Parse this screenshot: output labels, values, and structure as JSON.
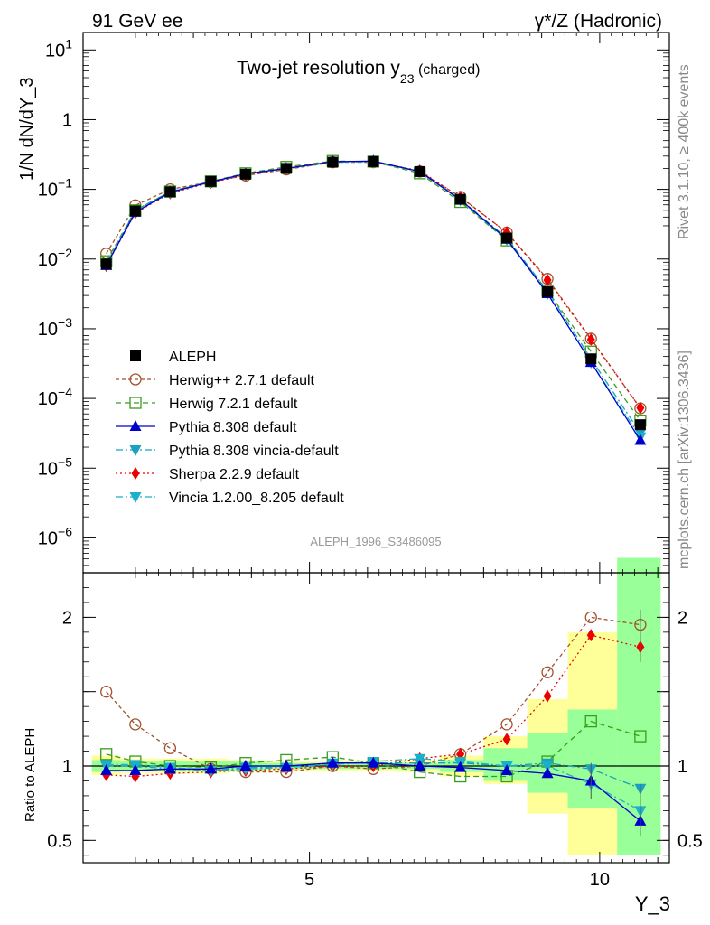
{
  "header": {
    "left": "91 GeV ee",
    "right": "γ*/Z (Hadronic)"
  },
  "side_text": {
    "rivet": "Rivet 3.1.10, ≥ 400k events",
    "mcplots": "mcplots.cern.ch [arXiv:1306.3436]"
  },
  "analysis_id": "ALEPH_1996_S3486095",
  "chart_data": {
    "type": "line",
    "title_main": "Two-jet resolution y",
    "title_sub": "23",
    "title_suffix": " (charged)",
    "xlabel": "Y_3",
    "ylabel": "1/N dN/dY_3",
    "ratio_ylabel": "Ratio to ALEPH",
    "xlim": [
      1.1,
      11.2
    ],
    "ylim_log10": [
      -6.5,
      1.25
    ],
    "ratio_ylim": [
      0.35,
      2.3
    ],
    "x_ticks": [
      "5",
      "10"
    ],
    "y_ticks": [
      {
        "base": "10",
        "exp": "1"
      },
      {
        "base": "1",
        "exp": ""
      },
      {
        "base": "10",
        "exp": "−1"
      },
      {
        "base": "10",
        "exp": "−2"
      },
      {
        "base": "10",
        "exp": "−3"
      },
      {
        "base": "10",
        "exp": "−4"
      },
      {
        "base": "10",
        "exp": "−5"
      },
      {
        "base": "10",
        "exp": "−6"
      }
    ],
    "ratio_ticks": [
      "2",
      "1",
      "0.5"
    ],
    "x": [
      1.5,
      2.0,
      2.6,
      3.3,
      3.9,
      4.6,
      5.4,
      6.1,
      6.9,
      7.6,
      8.4,
      9.1,
      9.85,
      10.7
    ],
    "bin_edges": [
      1.25,
      1.75,
      2.3,
      2.95,
      3.6,
      4.25,
      5.0,
      5.75,
      6.5,
      7.25,
      8.0,
      8.75,
      9.45,
      10.3,
      11.05
    ],
    "series": [
      {
        "name": "ALEPH",
        "label": "ALEPH",
        "values": [
          0.0085,
          0.049,
          0.092,
          0.13,
          0.165,
          0.2,
          0.245,
          0.25,
          0.18,
          0.072,
          0.02,
          0.0034,
          0.00037,
          4.2e-05
        ],
        "ratio": [
          1,
          1,
          1,
          1,
          1,
          1,
          1,
          1,
          1,
          1,
          1,
          1,
          1,
          1
        ]
      },
      {
        "name": "herwigpp",
        "label": "Herwig++ 2.7.1 default",
        "values": [
          0.012,
          0.059,
          0.1,
          0.128,
          0.158,
          0.193,
          0.245,
          0.245,
          0.18,
          0.078,
          0.024,
          0.0052,
          0.00072,
          7.2e-05
        ],
        "ratio": [
          1.5,
          1.28,
          1.12,
          0.98,
          0.96,
          0.96,
          1.0,
          0.98,
          1.0,
          1.08,
          1.28,
          1.63,
          2.0,
          1.95
        ]
      },
      {
        "name": "herwig7",
        "label": "Herwig 7.2.1 default",
        "values": [
          0.0093,
          0.05,
          0.093,
          0.13,
          0.17,
          0.21,
          0.255,
          0.25,
          0.17,
          0.066,
          0.0185,
          0.0035,
          0.00047,
          4.8e-05
        ],
        "ratio": [
          1.08,
          1.03,
          1.0,
          0.99,
          1.02,
          1.04,
          1.06,
          1.02,
          0.96,
          0.93,
          0.93,
          1.03,
          1.3,
          1.2
        ]
      },
      {
        "name": "pythia",
        "label": "Pythia 8.308 default",
        "values": [
          0.0081,
          0.047,
          0.091,
          0.128,
          0.167,
          0.2,
          0.25,
          0.255,
          0.18,
          0.071,
          0.0193,
          0.0032,
          0.00033,
          2.5e-05
        ],
        "ratio": [
          0.97,
          0.97,
          0.98,
          0.98,
          1.0,
          1.0,
          1.02,
          1.02,
          1.0,
          0.99,
          0.97,
          0.95,
          0.9,
          0.63
        ]
      },
      {
        "name": "pythia-vincia",
        "label": "Pythia 8.308 vincia-default",
        "values": [
          0.0085,
          0.05,
          0.093,
          0.128,
          0.165,
          0.2,
          0.245,
          0.25,
          0.18,
          0.072,
          0.02,
          0.0035,
          0.00037,
          3.2e-05
        ],
        "ratio": [
          1.0,
          1.0,
          0.98,
          0.97,
          0.99,
          0.99,
          1.02,
          1.02,
          1.02,
          1.02,
          1.0,
          1.02,
          0.98,
          0.85
        ]
      },
      {
        "name": "sherpa",
        "label": "Sherpa 2.2.9 default",
        "values": [
          0.008,
          0.046,
          0.088,
          0.125,
          0.16,
          0.197,
          0.245,
          0.25,
          0.185,
          0.077,
          0.024,
          0.005,
          0.0007,
          7.3e-05
        ],
        "ratio": [
          0.94,
          0.93,
          0.95,
          0.96,
          0.97,
          0.98,
          1.0,
          1.0,
          1.05,
          1.08,
          1.18,
          1.47,
          1.88,
          1.8
        ]
      },
      {
        "name": "vincia",
        "label": "Vincia 1.2.00_8.205 default",
        "values": [
          0.0083,
          0.047,
          0.09,
          0.127,
          0.165,
          0.2,
          0.245,
          0.25,
          0.18,
          0.07,
          0.019,
          0.0032,
          0.00033,
          2.8e-05
        ],
        "ratio": [
          1.01,
          1.01,
          0.99,
          0.97,
          0.98,
          0.99,
          1.01,
          1.03,
          1.05,
          1.03,
          1.0,
          1.0,
          0.88,
          0.7
        ]
      }
    ],
    "band_stat": [
      [
        0.96,
        1.04
      ],
      [
        0.97,
        1.03
      ],
      [
        0.97,
        1.03
      ],
      [
        0.97,
        1.03
      ],
      [
        0.97,
        1.03
      ],
      [
        0.98,
        1.02
      ],
      [
        0.98,
        1.02
      ],
      [
        0.98,
        1.02
      ],
      [
        0.98,
        1.02
      ],
      [
        0.96,
        1.04
      ],
      [
        0.9,
        1.12
      ],
      [
        0.82,
        1.22
      ],
      [
        0.72,
        1.38
      ],
      [
        0.4,
        2.4
      ]
    ],
    "band_syst": [
      [
        0.94,
        1.07
      ],
      [
        0.95,
        1.05
      ],
      [
        0.95,
        1.05
      ],
      [
        0.95,
        1.05
      ],
      [
        0.96,
        1.04
      ],
      [
        0.97,
        1.03
      ],
      [
        0.97,
        1.03
      ],
      [
        0.97,
        1.03
      ],
      [
        0.96,
        1.04
      ],
      [
        0.93,
        1.07
      ],
      [
        0.88,
        1.2
      ],
      [
        0.68,
        1.45
      ],
      [
        0.4,
        1.9
      ],
      [
        0.4,
        2.4
      ]
    ]
  }
}
